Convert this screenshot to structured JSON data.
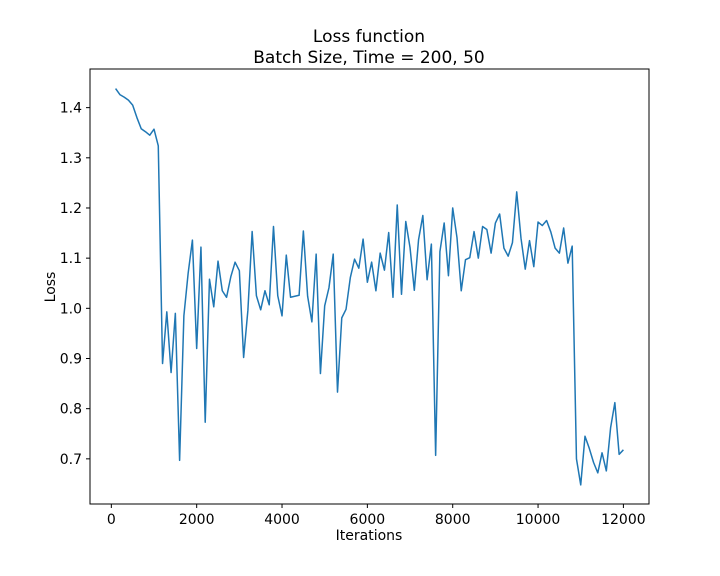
{
  "chart_data": {
    "type": "line",
    "title": "Loss function",
    "subtitle": "Batch Size, Time = 200, 50",
    "xlabel": "Iterations",
    "ylabel": "Loss",
    "xlim": [
      -500,
      12600
    ],
    "ylim": [
      0.61,
      1.477
    ],
    "xticks": [
      0,
      2000,
      4000,
      6000,
      8000,
      10000,
      12000
    ],
    "yticks": [
      0.7,
      0.8,
      0.9,
      1.0,
      1.1,
      1.2,
      1.3,
      1.4
    ],
    "xtick_labels": [
      "0",
      "2000",
      "4000",
      "6000",
      "8000",
      "10000",
      "12000"
    ],
    "ytick_labels": [
      "0.7",
      "0.8",
      "0.9",
      "1.0",
      "1.1",
      "1.2",
      "1.3",
      "1.4"
    ],
    "grid": false,
    "legend": "none",
    "series": [
      {
        "color": "#1f77b4",
        "x": [
          100,
          200,
          300,
          400,
          500,
          600,
          700,
          800,
          900,
          1000,
          1100,
          1200,
          1300,
          1400,
          1500,
          1600,
          1700,
          1800,
          1900,
          2000,
          2100,
          2200,
          2300,
          2400,
          2500,
          2600,
          2700,
          2800,
          2900,
          3000,
          3100,
          3200,
          3300,
          3400,
          3500,
          3600,
          3700,
          3800,
          3900,
          4000,
          4100,
          4200,
          4300,
          4400,
          4500,
          4600,
          4700,
          4800,
          4900,
          5000,
          5100,
          5200,
          5300,
          5400,
          5500,
          5600,
          5700,
          5800,
          5900,
          6000,
          6100,
          6200,
          6300,
          6400,
          6500,
          6600,
          6700,
          6800,
          6900,
          7000,
          7100,
          7200,
          7300,
          7400,
          7500,
          7600,
          7700,
          7800,
          7900,
          8000,
          8100,
          8200,
          8300,
          8400,
          8500,
          8600,
          8700,
          8800,
          8900,
          9000,
          9100,
          9200,
          9300,
          9400,
          9500,
          9600,
          9700,
          9800,
          9900,
          10000,
          10100,
          10200,
          10300,
          10400,
          10500,
          10600,
          10700,
          10800,
          10900,
          11000,
          11100,
          11200,
          11300,
          11400,
          11500,
          11600,
          11700,
          11800,
          11900,
          12000
        ],
        "y": [
          1.438,
          1.426,
          1.421,
          1.415,
          1.405,
          1.38,
          1.358,
          1.352,
          1.345,
          1.357,
          1.324,
          0.89,
          0.993,
          0.872,
          0.99,
          0.697,
          0.985,
          1.07,
          1.136,
          0.92,
          1.122,
          0.773,
          1.058,
          1.003,
          1.094,
          1.035,
          1.022,
          1.063,
          1.092,
          1.075,
          0.902,
          0.996,
          1.153,
          1.025,
          0.997,
          1.035,
          1.007,
          1.163,
          1.025,
          0.985,
          1.106,
          1.022,
          1.024,
          1.026,
          1.154,
          1.024,
          0.973,
          1.108,
          0.87,
          1.005,
          1.041,
          1.108,
          0.833,
          0.981,
          0.998,
          1.061,
          1.098,
          1.08,
          1.138,
          1.052,
          1.092,
          1.035,
          1.11,
          1.076,
          1.151,
          1.022,
          1.206,
          1.028,
          1.173,
          1.121,
          1.036,
          1.137,
          1.185,
          1.057,
          1.128,
          0.707,
          1.113,
          1.17,
          1.065,
          1.2,
          1.141,
          1.035,
          1.097,
          1.101,
          1.153,
          1.1,
          1.163,
          1.157,
          1.11,
          1.17,
          1.188,
          1.12,
          1.104,
          1.131,
          1.232,
          1.14,
          1.078,
          1.135,
          1.083,
          1.172,
          1.165,
          1.175,
          1.152,
          1.12,
          1.11,
          1.16,
          1.09,
          1.124,
          0.7,
          0.648,
          0.745,
          0.721,
          0.693,
          0.672,
          0.712,
          0.676,
          0.762,
          0.812,
          0.709,
          0.718
        ]
      }
    ]
  }
}
